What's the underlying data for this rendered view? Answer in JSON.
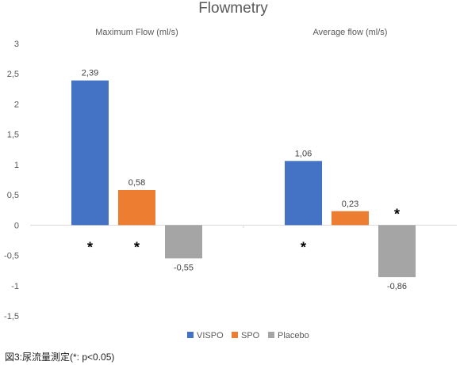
{
  "chart_data": {
    "type": "bar",
    "title": "Flowmetry",
    "groups": [
      "Maximum Flow (ml/s)",
      "Average flow (ml/s)"
    ],
    "series": [
      {
        "name": "VISPO",
        "color": "#4472C4",
        "values": [
          2.39,
          1.06
        ],
        "labels": [
          "2,39",
          "1,06"
        ],
        "stars": [
          true,
          true
        ]
      },
      {
        "name": "SPO",
        "color": "#ED7D31",
        "values": [
          0.58,
          0.23
        ],
        "labels": [
          "0,58",
          "0,23"
        ],
        "stars": [
          true,
          false
        ]
      },
      {
        "name": "Placebo",
        "color": "#A5A5A5",
        "values": [
          -0.55,
          -0.86
        ],
        "labels": [
          "-0,55",
          "-0,86"
        ],
        "stars": [
          false,
          true
        ]
      }
    ],
    "ylim": [
      -1.5,
      3
    ],
    "yticks": [
      3,
      2.5,
      2,
      1.5,
      1,
      0.5,
      0,
      -0.5,
      -1,
      -1.5
    ],
    "ytick_labels": [
      "3",
      "2,5",
      "2",
      "1,5",
      "1",
      "0,5",
      "0",
      "-0,5",
      "-1",
      "-1,5"
    ],
    "significance_marker": "*",
    "grid": false,
    "legend_position": "bottom"
  },
  "caption": "図3:尿流量測定(*: p<0.05)"
}
